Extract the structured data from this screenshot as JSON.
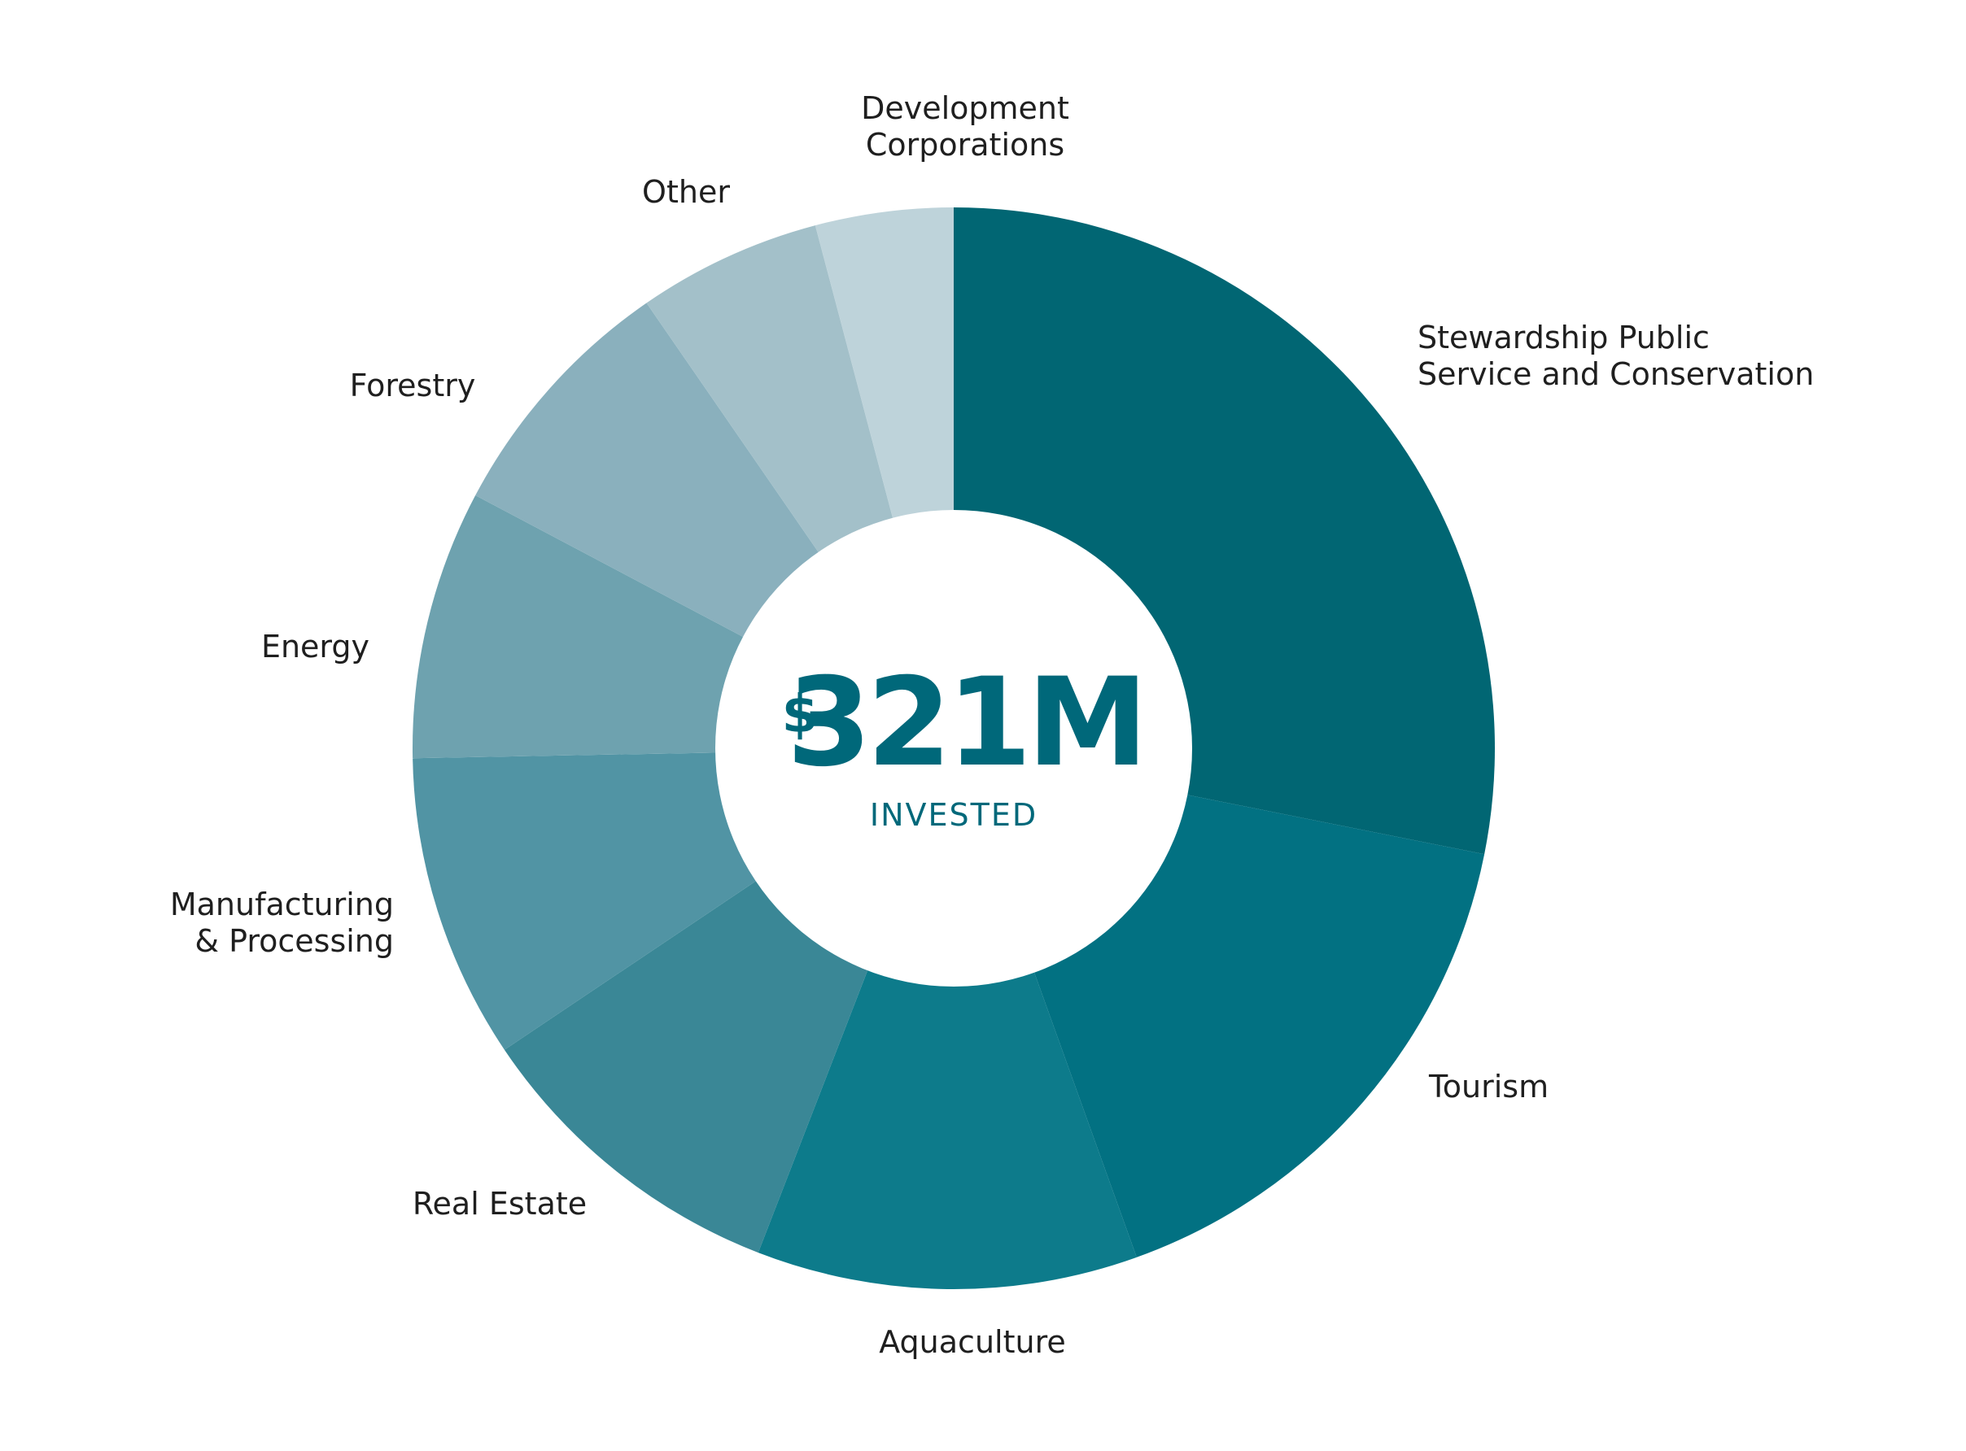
{
  "chart_data": {
    "type": "pie",
    "variant": "donut",
    "center": {
      "currency_symbol": "$",
      "amount": "321M",
      "caption": "INVESTED",
      "color": "#00687a"
    },
    "label_color": "#1f1f1f",
    "slices": [
      {
        "label": [
          "Stewardship Public",
          "Service and Conservation"
        ],
        "value": 28.7,
        "color": "#016673"
      },
      {
        "label": [
          "Tourism"
        ],
        "value": 16.7,
        "color": "#027182"
      },
      {
        "label": [
          "Aquaculture"
        ],
        "value": 11.6,
        "color": "#0d7b8b"
      },
      {
        "label": [
          "Real Estate"
        ],
        "value": 9.9,
        "color": "#3a8796"
      },
      {
        "label": [
          "Manufacturing",
          "& Processing"
        ],
        "value": 9.3,
        "color": "#5194a4"
      },
      {
        "label": [
          "Energy"
        ],
        "value": 8.2,
        "color": "#6ea2af"
      },
      {
        "label": [
          "Forestry"
        ],
        "value": 7.8,
        "color": "#8ab0bd"
      },
      {
        "label": [
          "Other"
        ],
        "value": 5.6,
        "color": "#a3c0c9"
      },
      {
        "label": [
          "Development",
          "Corporations"
        ],
        "value": 4.2,
        "color": "#bed3da"
      }
    ]
  }
}
